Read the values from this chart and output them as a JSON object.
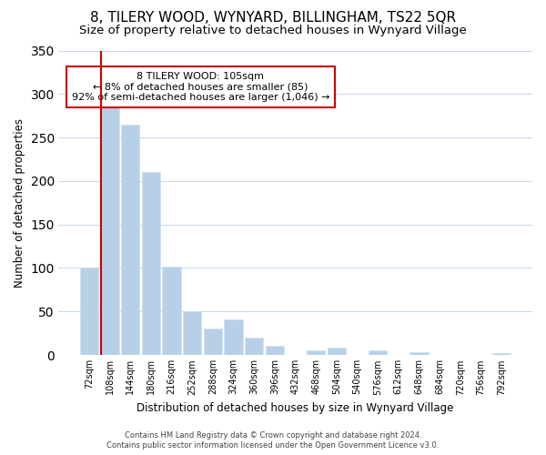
{
  "title": "8, TILERY WOOD, WYNYARD, BILLINGHAM, TS22 5QR",
  "subtitle": "Size of property relative to detached houses in Wynyard Village",
  "xlabel": "Distribution of detached houses by size in Wynyard Village",
  "ylabel": "Number of detached properties",
  "bar_labels": [
    "72sqm",
    "108sqm",
    "144sqm",
    "180sqm",
    "216sqm",
    "252sqm",
    "288sqm",
    "324sqm",
    "360sqm",
    "396sqm",
    "432sqm",
    "468sqm",
    "504sqm",
    "540sqm",
    "576sqm",
    "612sqm",
    "648sqm",
    "684sqm",
    "720sqm",
    "756sqm",
    "792sqm"
  ],
  "bar_values": [
    100,
    287,
    265,
    210,
    102,
    50,
    30,
    41,
    20,
    10,
    0,
    5,
    8,
    0,
    5,
    0,
    3,
    0,
    0,
    0,
    2
  ],
  "bar_color": "#b8cfe8",
  "highlight_color": "#cc0000",
  "annotation_title": "8 TILERY WOOD: 105sqm",
  "annotation_line1": "← 8% of detached houses are smaller (85)",
  "annotation_line2": "92% of semi-detached houses are larger (1,046) →",
  "annotation_box_color": "#ffffff",
  "annotation_box_edge": "#cc0000",
  "ylim": [
    0,
    350
  ],
  "yticks": [
    0,
    50,
    100,
    150,
    200,
    250,
    300,
    350
  ],
  "footer1": "Contains HM Land Registry data © Crown copyright and database right 2024.",
  "footer2": "Contains public sector information licensed under the Open Government Licence v3.0.",
  "bg_color": "#ffffff",
  "grid_color": "#c8d8e8",
  "title_fontsize": 11,
  "subtitle_fontsize": 9.5,
  "redline_x": 0.575
}
